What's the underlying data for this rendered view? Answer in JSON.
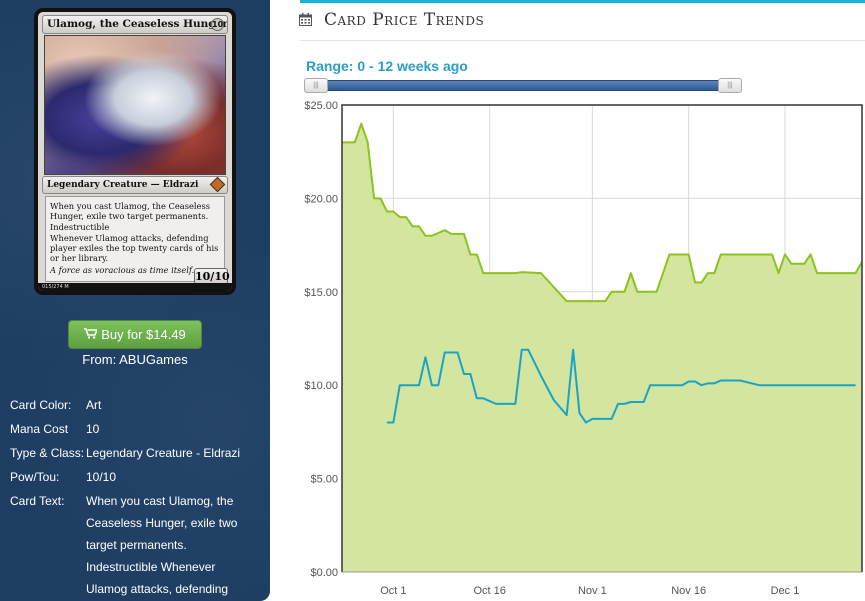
{
  "card": {
    "name": "Ulamog, the Ceaseless Hunger",
    "mana_symbol": "10",
    "type_line": "Legendary Creature — Eldrazi",
    "rules_text": [
      "When you cast Ulamog, the Ceaseless Hunger, exile two target permanents.",
      "Indestructible",
      "Whenever Ulamog attacks, defending player exiles the top twenty cards of his or her library."
    ],
    "flavor_text": "A force as voracious as time itself.",
    "power_toughness": "10/10",
    "collector_info": "015/274 M"
  },
  "buy": {
    "icon": "cart-icon",
    "label": "Buy for $14.49",
    "from": "From: ABUGames",
    "color": "#6aad4a"
  },
  "details": [
    {
      "label": "Card Color:",
      "value": "Art"
    },
    {
      "label": "Mana Cost",
      "value": "10"
    },
    {
      "label": "Type & Class:",
      "value": "Legendary Creature - Eldrazi"
    },
    {
      "label": "Pow/Tou:",
      "value": "10/10"
    },
    {
      "label": "Card Text:",
      "value": "When you cast Ulamog, the Ceaseless Hunger, exile two target permanents. Indestructible Whenever Ulamog attacks, defending"
    }
  ],
  "chart_section": {
    "icon": "calendar-icon",
    "title": "Card Price Trends",
    "range_label": "Range: 0 - 12 weeks ago",
    "range_handle_glyph": "|||",
    "accent_color": "#18b2d4"
  },
  "chart_data": {
    "type": "line",
    "title": "Card Price Trends",
    "xlabel": "",
    "ylabel": "",
    "x_domain": [
      "2015-09-23",
      "2015-12-13"
    ],
    "ylim": [
      0,
      25
    ],
    "y_ticks": [
      {
        "value": 0,
        "label": "$0.00"
      },
      {
        "value": 5,
        "label": "$5.00"
      },
      {
        "value": 10,
        "label": "$10.00"
      },
      {
        "value": 15,
        "label": "$15.00"
      },
      {
        "value": 20,
        "label": "$20.00"
      },
      {
        "value": 25,
        "label": "$25.00"
      }
    ],
    "x_ticks": [
      {
        "date": "2015-10-01",
        "label": "Oct 1"
      },
      {
        "date": "2015-10-16",
        "label": "Oct 16"
      },
      {
        "date": "2015-11-01",
        "label": "Nov 1"
      },
      {
        "date": "2015-11-16",
        "label": "Nov 16"
      },
      {
        "date": "2015-12-01",
        "label": "Dec 1"
      }
    ],
    "grid": true,
    "legend": "none",
    "series": [
      {
        "color": "#8dc21f",
        "fill": "#d3e59e",
        "points": [
          [
            "2015-09-23",
            23.0
          ],
          [
            "2015-09-25",
            23.0
          ],
          [
            "2015-09-26",
            24.0
          ],
          [
            "2015-09-27",
            23.0
          ],
          [
            "2015-09-28",
            20.0
          ],
          [
            "2015-09-29",
            20.0
          ],
          [
            "2015-09-30",
            19.3
          ],
          [
            "2015-10-01",
            19.3
          ],
          [
            "2015-10-02",
            19.0
          ],
          [
            "2015-10-03",
            19.0
          ],
          [
            "2015-10-04",
            18.5
          ],
          [
            "2015-10-05",
            18.5
          ],
          [
            "2015-10-06",
            18.0
          ],
          [
            "2015-10-07",
            18.0
          ],
          [
            "2015-10-09",
            18.3
          ],
          [
            "2015-10-10",
            18.1
          ],
          [
            "2015-10-12",
            18.1
          ],
          [
            "2015-10-13",
            17.0
          ],
          [
            "2015-10-14",
            17.0
          ],
          [
            "2015-10-15",
            16.0
          ],
          [
            "2015-10-20",
            16.0
          ],
          [
            "2015-10-21",
            16.05
          ],
          [
            "2015-10-24",
            16.0
          ],
          [
            "2015-10-28",
            14.5
          ],
          [
            "2015-10-31",
            14.5
          ],
          [
            "2015-11-01",
            14.5
          ],
          [
            "2015-11-03",
            14.5
          ],
          [
            "2015-11-04",
            15.0
          ],
          [
            "2015-11-05",
            15.0
          ],
          [
            "2015-11-06",
            15.0
          ],
          [
            "2015-11-07",
            16.0
          ],
          [
            "2015-11-08",
            15.0
          ],
          [
            "2015-11-11",
            15.0
          ],
          [
            "2015-11-13",
            17.0
          ],
          [
            "2015-11-16",
            17.0
          ],
          [
            "2015-11-17",
            15.5
          ],
          [
            "2015-11-18",
            15.5
          ],
          [
            "2015-11-19",
            16.0
          ],
          [
            "2015-11-20",
            16.0
          ],
          [
            "2015-11-21",
            17.0
          ],
          [
            "2015-11-29",
            17.0
          ],
          [
            "2015-11-30",
            16.0
          ],
          [
            "2015-12-01",
            17.0
          ],
          [
            "2015-12-02",
            16.5
          ],
          [
            "2015-12-04",
            16.5
          ],
          [
            "2015-12-05",
            17.0
          ],
          [
            "2015-12-06",
            16.0
          ],
          [
            "2015-12-12",
            16.0
          ],
          [
            "2015-12-13",
            16.6
          ]
        ]
      },
      {
        "color": "#1aa3c6",
        "points": [
          [
            "2015-09-30",
            8.0
          ],
          [
            "2015-10-01",
            8.0
          ],
          [
            "2015-10-02",
            10.0
          ],
          [
            "2015-10-05",
            10.0
          ],
          [
            "2015-10-06",
            11.5
          ],
          [
            "2015-10-07",
            10.0
          ],
          [
            "2015-10-08",
            10.0
          ],
          [
            "2015-10-09",
            11.75
          ],
          [
            "2015-10-11",
            11.75
          ],
          [
            "2015-10-12",
            10.6
          ],
          [
            "2015-10-13",
            10.6
          ],
          [
            "2015-10-14",
            9.3
          ],
          [
            "2015-10-15",
            9.3
          ],
          [
            "2015-10-17",
            9.0
          ],
          [
            "2015-10-20",
            9.0
          ],
          [
            "2015-10-21",
            11.9
          ],
          [
            "2015-10-22",
            11.9
          ],
          [
            "2015-10-24",
            10.5
          ],
          [
            "2015-10-26",
            9.2
          ],
          [
            "2015-10-28",
            8.4
          ],
          [
            "2015-10-29",
            11.9
          ],
          [
            "2015-10-30",
            8.5
          ],
          [
            "2015-10-31",
            8.0
          ],
          [
            "2015-11-01",
            8.2
          ],
          [
            "2015-11-04",
            8.2
          ],
          [
            "2015-11-05",
            9.0
          ],
          [
            "2015-11-06",
            9.0
          ],
          [
            "2015-11-07",
            9.1
          ],
          [
            "2015-11-09",
            9.1
          ],
          [
            "2015-11-10",
            10.0
          ],
          [
            "2015-11-15",
            10.0
          ],
          [
            "2015-11-16",
            10.2
          ],
          [
            "2015-11-17",
            10.2
          ],
          [
            "2015-11-18",
            10.0
          ],
          [
            "2015-11-19",
            10.1
          ],
          [
            "2015-11-20",
            10.1
          ],
          [
            "2015-11-21",
            10.25
          ],
          [
            "2015-11-24",
            10.25
          ],
          [
            "2015-11-27",
            10.0
          ],
          [
            "2015-12-12",
            10.0
          ]
        ]
      }
    ]
  }
}
